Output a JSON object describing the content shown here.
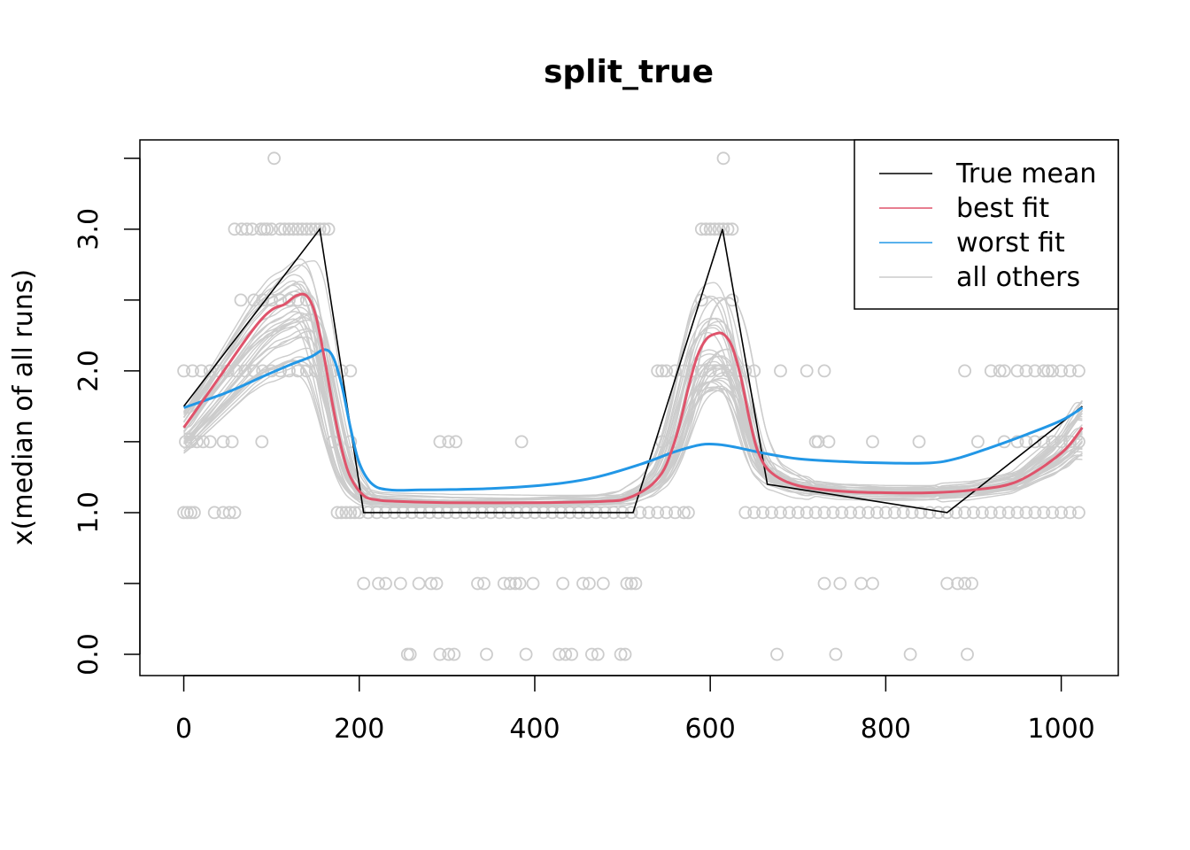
{
  "chart_data": {
    "type": "line",
    "title": "split_true",
    "xlabel": "",
    "ylabel": "x(median of all runs)",
    "xlim": [
      -50,
      1065
    ],
    "ylim": [
      -0.15,
      3.63
    ],
    "x_ticks": [
      0,
      200,
      400,
      600,
      800,
      1000
    ],
    "x_tick_labels": [
      "0",
      "200",
      "400",
      "600",
      "800",
      "1000"
    ],
    "y_ticks": [
      0,
      0.5,
      1,
      1.5,
      2,
      2.5,
      3,
      3.5
    ],
    "y_tick_labels": [
      "0.0",
      "",
      "1.0",
      "",
      "2.0",
      "",
      "3.0",
      ""
    ],
    "legend": {
      "position": "top-right",
      "entries": [
        {
          "label": "True mean",
          "color": "#000000"
        },
        {
          "label": "best fit",
          "color": "#DF536B"
        },
        {
          "label": "worst fit",
          "color": "#2297E6"
        },
        {
          "label": "all others",
          "color": "#CCCCCC"
        }
      ]
    },
    "series": [
      {
        "name": "True mean",
        "color": "#000000",
        "x": [
          0,
          155,
          205,
          512,
          614,
          665,
          870,
          1024
        ],
        "y": [
          1.75,
          3.0,
          1.0,
          1.0,
          3.0,
          1.2,
          1.0,
          1.75
        ]
      },
      {
        "name": "best fit",
        "color": "#DF536B",
        "x": [
          0,
          40,
          80,
          100,
          115,
          128,
          140,
          150,
          160,
          170,
          180,
          190,
          205,
          220,
          240,
          300,
          400,
          480,
          505,
          530,
          545,
          555,
          565,
          575,
          585,
          595,
          605,
          615,
          625,
          635,
          645,
          655,
          670,
          700,
          750,
          800,
          850,
          900,
          950,
          1000,
          1024
        ],
        "y": [
          1.6,
          1.95,
          2.3,
          2.43,
          2.47,
          2.53,
          2.53,
          2.4,
          2.1,
          1.75,
          1.45,
          1.25,
          1.12,
          1.09,
          1.08,
          1.07,
          1.07,
          1.08,
          1.1,
          1.18,
          1.28,
          1.42,
          1.62,
          1.88,
          2.1,
          2.22,
          2.26,
          2.26,
          2.17,
          1.95,
          1.65,
          1.42,
          1.28,
          1.19,
          1.15,
          1.14,
          1.14,
          1.16,
          1.22,
          1.42,
          1.6
        ]
      },
      {
        "name": "worst fit",
        "color": "#2297E6",
        "x": [
          0,
          50,
          90,
          120,
          145,
          160,
          170,
          180,
          190,
          200,
          215,
          235,
          270,
          350,
          420,
          470,
          520,
          560,
          590,
          610,
          630,
          660,
          700,
          750,
          800,
          850,
          880,
          920,
          960,
          1000,
          1024
        ],
        "y": [
          1.74,
          1.85,
          1.96,
          2.04,
          2.1,
          2.15,
          2.1,
          1.9,
          1.6,
          1.35,
          1.2,
          1.16,
          1.16,
          1.17,
          1.2,
          1.25,
          1.34,
          1.43,
          1.48,
          1.48,
          1.46,
          1.42,
          1.38,
          1.36,
          1.35,
          1.35,
          1.38,
          1.46,
          1.55,
          1.65,
          1.74
        ]
      }
    ],
    "others": {
      "name": "all others",
      "color": "#CCCCCC",
      "count": 34
    },
    "points": {
      "color": "#CCCCCC",
      "groups": [
        {
          "y": 3.5,
          "x": [
            103,
            615
          ]
        },
        {
          "y": 3.0,
          "x": [
            58,
            66,
            72,
            78,
            88,
            92,
            95,
            100,
            110,
            115,
            120,
            125,
            130,
            135,
            140,
            145,
            150,
            155,
            160,
            165,
            590,
            595,
            600,
            605,
            610,
            615,
            620,
            625
          ]
        },
        {
          "y": 2.5,
          "x": [
            65,
            80,
            90,
            100,
            110,
            120,
            130,
            140,
            590,
            625
          ]
        },
        {
          "y": 2.0,
          "x": [
            0,
            10,
            20,
            30,
            40,
            50,
            60,
            70,
            80,
            90,
            100,
            110,
            120,
            130,
            140,
            150,
            160,
            170,
            180,
            190,
            540,
            545,
            550,
            560,
            570,
            580,
            590,
            600,
            610,
            620,
            630,
            640,
            650,
            680,
            710,
            730,
            890,
            920,
            930,
            935,
            950,
            960,
            970,
            980,
            985,
            990,
            1000,
            1010,
            1020
          ]
        },
        {
          "y": 1.5,
          "x": [
            2,
            8,
            15,
            22,
            30,
            45,
            55,
            89,
            170,
            190,
            292,
            302,
            310,
            385,
            545,
            560,
            720,
            723,
            735,
            785,
            838,
            905,
            935,
            950,
            960,
            970,
            980,
            990,
            1000,
            1010,
            1020
          ]
        },
        {
          "y": 1.0,
          "x": [
            0,
            4,
            8,
            12,
            35,
            45,
            52,
            58,
            175,
            180,
            185,
            190,
            195,
            200,
            210,
            220,
            230,
            240,
            250,
            260,
            270,
            280,
            290,
            300,
            310,
            320,
            330,
            340,
            350,
            360,
            370,
            380,
            390,
            400,
            410,
            420,
            430,
            440,
            450,
            460,
            470,
            480,
            490,
            500,
            510,
            520,
            530,
            540,
            550,
            560,
            570,
            575,
            640,
            650,
            660,
            670,
            680,
            690,
            700,
            710,
            720,
            730,
            740,
            750,
            760,
            770,
            780,
            790,
            800,
            810,
            820,
            830,
            840,
            850,
            860,
            870,
            880,
            890,
            900,
            910,
            920,
            930,
            940,
            950,
            960,
            970,
            980,
            990,
            1000,
            1010,
            1020
          ]
        },
        {
          "y": 0.5,
          "x": [
            205,
            222,
            230,
            247,
            268,
            282,
            288,
            335,
            342,
            365,
            372,
            378,
            383,
            398,
            432,
            455,
            462,
            478,
            505,
            510,
            515,
            730,
            748,
            772,
            785,
            870,
            882,
            890,
            898
          ]
        },
        {
          "y": 0.0,
          "x": [
            255,
            258,
            292,
            302,
            308,
            345,
            390,
            428,
            435,
            442,
            465,
            472,
            498,
            503,
            676,
            743,
            828,
            893
          ]
        }
      ]
    }
  }
}
